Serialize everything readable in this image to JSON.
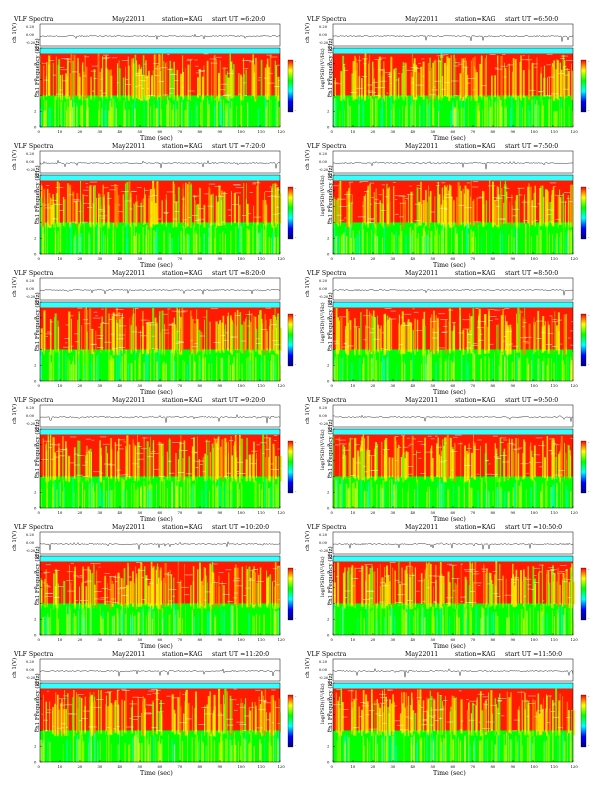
{
  "common": {
    "title": "VLF Spectra",
    "date": "May22011",
    "station": "station=KAG",
    "ch_label": "ch 1(V)",
    "freq_label": "ch1 Frequency (kHz)",
    "xlabel": "Time (sec)",
    "cbar_label": "log(PSD)(V²/Hz)",
    "cbar_ticks": [
      "-",
      "-"
    ],
    "ch_ticks": [
      "0.20",
      "0.00",
      "-0.20"
    ]
  },
  "panels": [
    {
      "ut": "start UT =6:20:0"
    },
    {
      "ut": "start UT =6:50:0"
    },
    {
      "ut": "start UT =7:20:0"
    },
    {
      "ut": "start UT =7:50:0"
    },
    {
      "ut": "start UT =8:20:0"
    },
    {
      "ut": "start UT =8:50:0"
    },
    {
      "ut": "start UT =9:20:0"
    },
    {
      "ut": "start UT =9:50:0"
    },
    {
      "ut": "start UT =10:20:0"
    },
    {
      "ut": "start UT =10:50:0"
    },
    {
      "ut": "start UT =11:20:0"
    },
    {
      "ut": "start UT =11:50:0"
    }
  ],
  "chart_data": {
    "type": "heatmap",
    "description_source": "twelve VLF spectrogram panels, 2 columns x 6 rows",
    "x": {
      "label": "Time (sec)",
      "range": [
        0,
        120
      ],
      "ticks": [
        0,
        10,
        20,
        30,
        40,
        50,
        60,
        70,
        80,
        90,
        100,
        110,
        120
      ]
    },
    "y": {
      "label": "Frequency (kHz)",
      "range": [
        0,
        10
      ],
      "ticks": [
        0,
        2,
        4,
        6,
        8,
        10
      ]
    },
    "ch_y": {
      "label": "ch 1(V)",
      "range": [
        -0.2,
        0.2
      ],
      "ticks": [
        0.2,
        0.0,
        -0.2
      ]
    },
    "colorbar": {
      "label": "log(PSD)(V²/Hz)",
      "colors": [
        "#ff0000",
        "#ffff00",
        "#00ff00",
        "#00ffff",
        "#0000ff",
        "#000080"
      ]
    },
    "band_levels": [
      {
        "freq_range": [
          9.3,
          10
        ],
        "level": "cyan"
      },
      {
        "freq_range": [
          4,
          9.3
        ],
        "level": "red"
      },
      {
        "freq_range": [
          0,
          4
        ],
        "level": "green"
      }
    ]
  }
}
